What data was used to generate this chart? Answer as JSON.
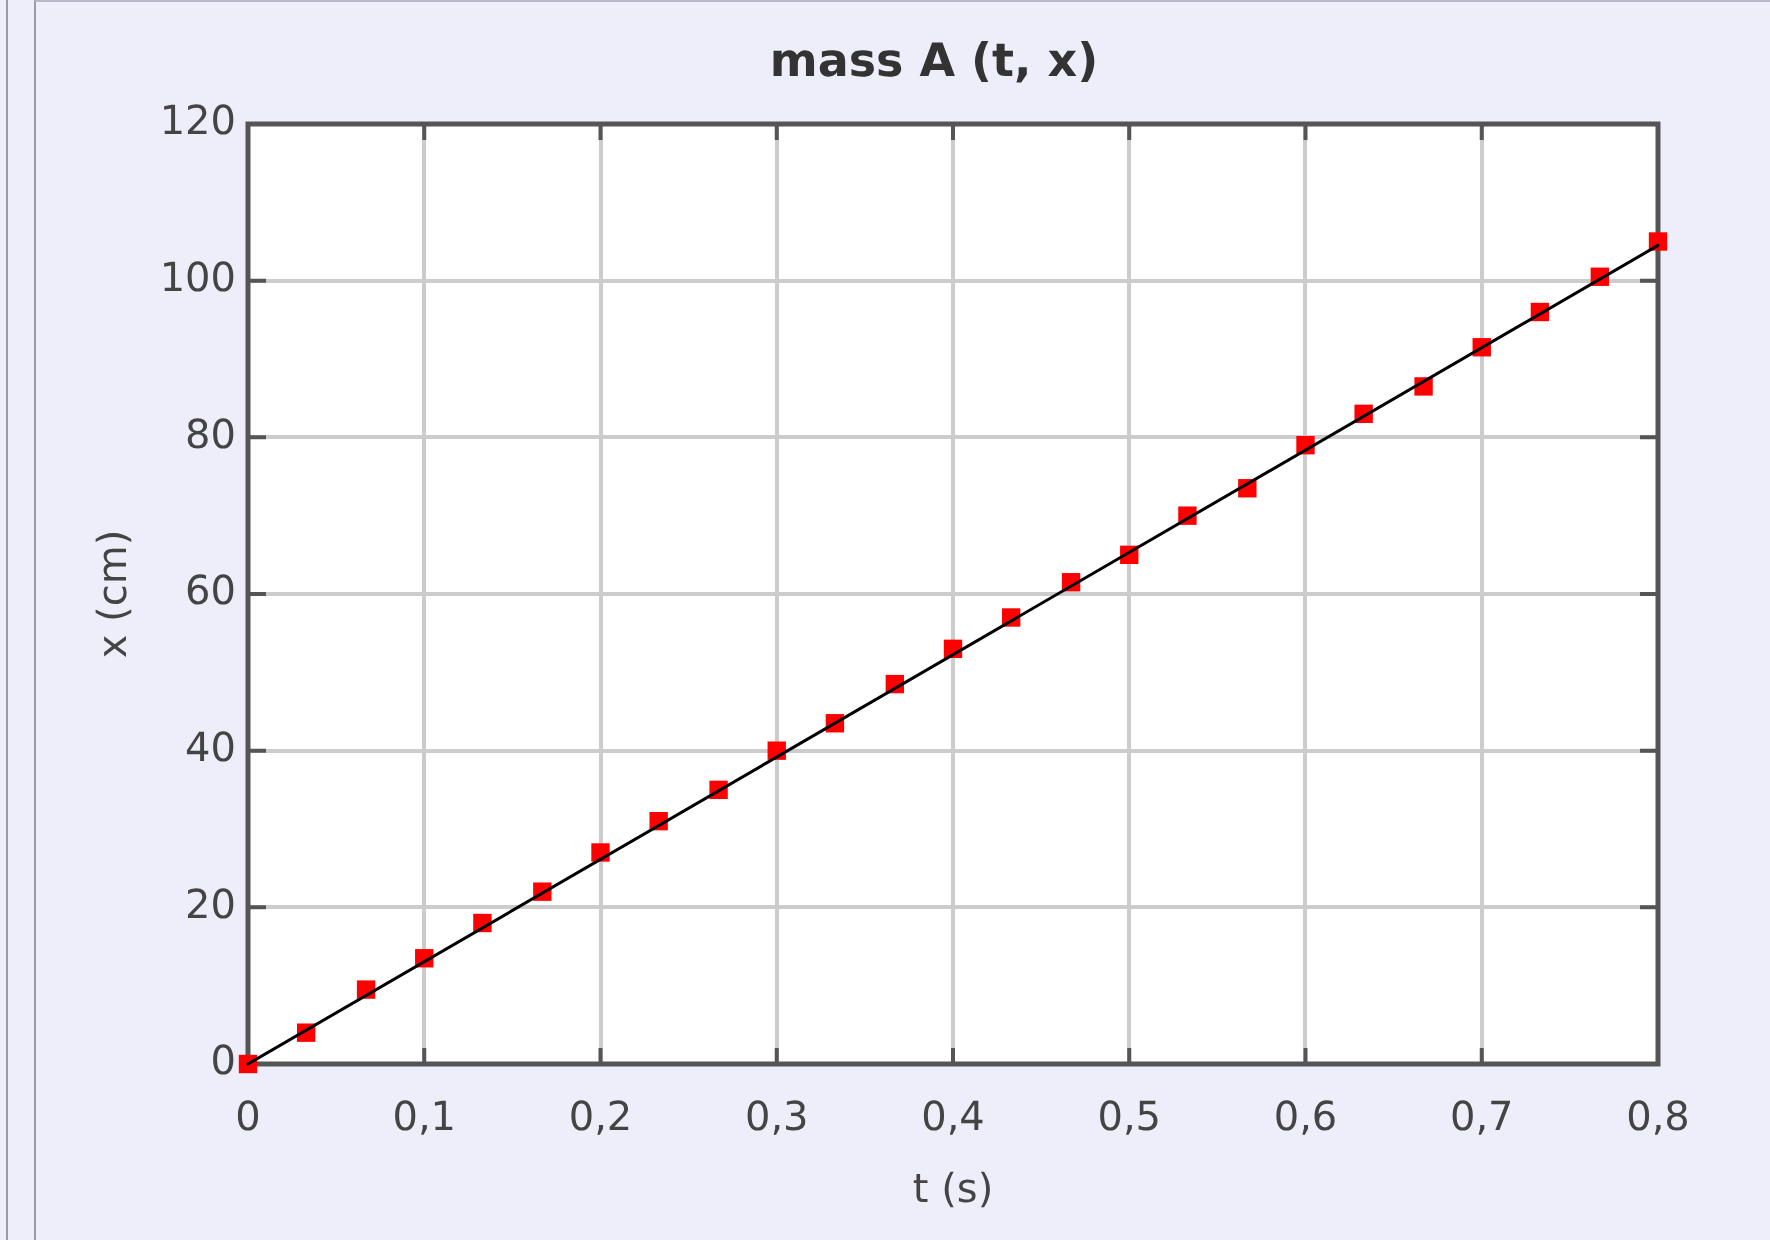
{
  "chart_data": {
    "type": "scatter",
    "title": "mass A (t, x)",
    "xlabel": "t (s)",
    "ylabel": "x (cm)",
    "series": [
      {
        "color": "#ff0000",
        "marker": "square",
        "x": [
          0,
          0.033,
          0.067,
          0.1,
          0.133,
          0.167,
          0.2,
          0.233,
          0.267,
          0.3,
          0.333,
          0.367,
          0.4,
          0.433,
          0.467,
          0.5,
          0.533,
          0.567,
          0.6,
          0.633,
          0.667,
          0.7,
          0.733,
          0.767,
          0.8
        ],
        "values": [
          0,
          4,
          9.5,
          13.5,
          18,
          22,
          27,
          31,
          35,
          40,
          43.5,
          48.5,
          53,
          57,
          61.5,
          65,
          70,
          73.5,
          79,
          83,
          86.5,
          91.5,
          96,
          100.5,
          105
        ]
      },
      {
        "type": "line",
        "color": "#000000",
        "marker": "none",
        "line_style": "solid",
        "x": [
          0,
          0.8
        ],
        "values": [
          0,
          104.5
        ]
      }
    ],
    "xlim": [
      0,
      0.8
    ],
    "ylim": [
      0,
      120
    ],
    "xticks": [
      0,
      {
        "value": 0.1,
        "label": "0,1"
      },
      {
        "value": 0.2,
        "label": "0,2"
      },
      {
        "value": 0.3,
        "label": "0,3"
      },
      {
        "value": 0.4,
        "label": "0,4"
      },
      {
        "value": 0.5,
        "label": "0,5"
      },
      {
        "value": 0.6,
        "label": "0,6"
      },
      {
        "value": 0.7,
        "label": "0,7"
      },
      {
        "value": 0.8,
        "label": "0,8"
      }
    ],
    "yticks": [
      0,
      20,
      40,
      60,
      80,
      100,
      120
    ],
    "grid": true
  }
}
